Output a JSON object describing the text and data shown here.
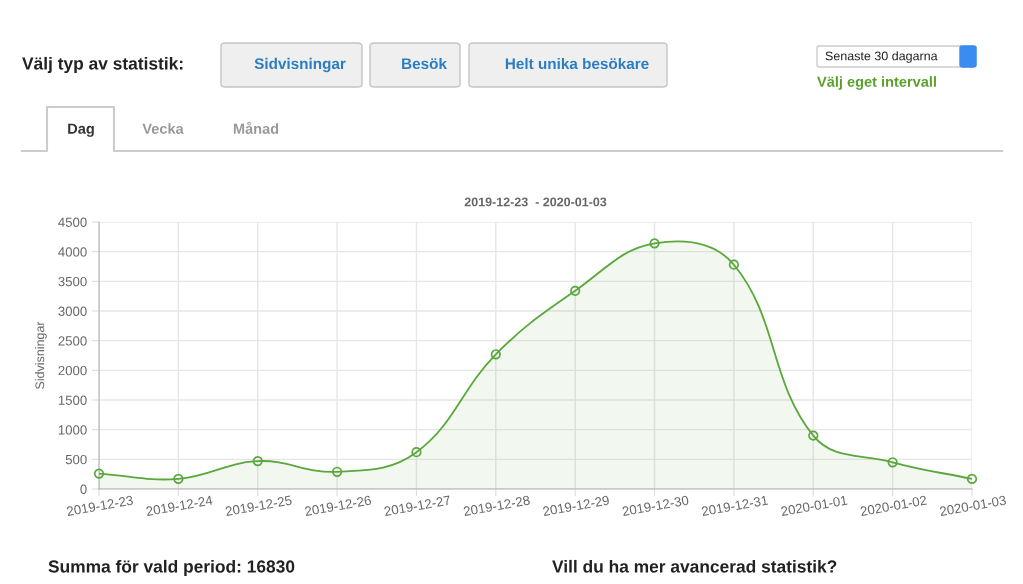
{
  "chart_data": {
    "type": "area",
    "title": "2019-12-23  - 2020-01-03",
    "ylabel": "Sidvisningar",
    "categories": [
      "2019-12-23",
      "2019-12-24",
      "2019-12-25",
      "2019-12-26",
      "2019-12-27",
      "2019-12-28",
      "2019-12-29",
      "2019-12-30",
      "2019-12-31",
      "2020-01-01",
      "2020-01-02",
      "2020-01-03"
    ],
    "series": [
      {
        "color": "#5aa83c",
        "values": [
          260,
          170,
          470,
          290,
          620,
          2270,
          3340,
          4140,
          3780,
          900,
          450,
          170
        ]
      }
    ],
    "ylim": [
      0,
      4500
    ],
    "yticks": [
      0,
      500,
      1000,
      1500,
      2000,
      2500,
      3000,
      3500,
      4000,
      4500
    ],
    "grid": true,
    "marker": "circle",
    "annotations": [
      "Välj typ av statistik:",
      "Sidvisningar",
      "Besök",
      "Helt unika besökare",
      "Senaste 30 dagarna",
      "Välj eget intervall",
      "Dag",
      "Vecka",
      "Månad",
      "Summa för vald period: 16830",
      "Vill du ha mer avancerad statistik?"
    ]
  }
}
